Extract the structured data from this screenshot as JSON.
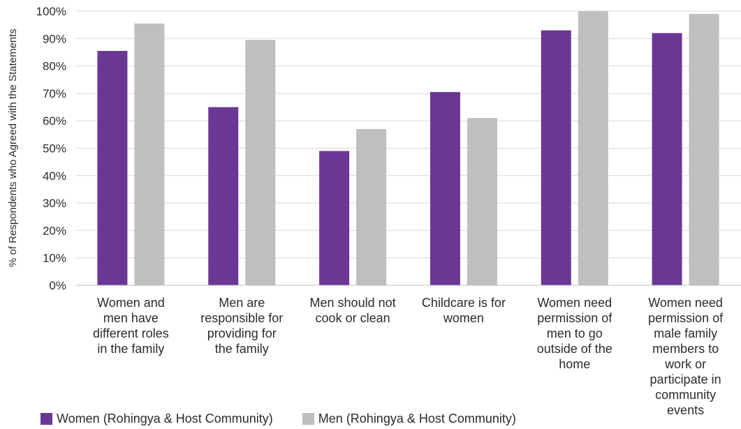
{
  "chart_data": {
    "type": "bar",
    "ylabel": "% of Respondents who Agreed with the Statements",
    "ylim": [
      0,
      100
    ],
    "yticks": [
      "0%",
      "10%",
      "20%",
      "30%",
      "40%",
      "50%",
      "60%",
      "70%",
      "80%",
      "90%",
      "100%"
    ],
    "grid": true,
    "legend_position": "bottom-left",
    "categories": [
      [
        "Women and",
        "men have",
        "different roles",
        "in the family"
      ],
      [
        "Men are",
        "responsible for",
        "providing for",
        "the family"
      ],
      [
        "Men should not",
        "cook or clean"
      ],
      [
        "Childcare is for",
        "women"
      ],
      [
        "Women need",
        "permission of",
        "men to go",
        "outside of the",
        "home"
      ],
      [
        "Women need",
        "permission of",
        "male family",
        "members to",
        "work or",
        "participate in",
        "community",
        "events"
      ]
    ],
    "series": [
      {
        "name": "Women (Rohingya & Host Community)",
        "color": "#6b3794",
        "values": [
          85.5,
          65,
          49,
          70.5,
          93,
          92
        ]
      },
      {
        "name": "Men (Rohingya & Host Community)",
        "color": "#bfbfbf",
        "values": [
          95.5,
          89.5,
          57,
          61,
          100,
          99
        ]
      }
    ]
  }
}
